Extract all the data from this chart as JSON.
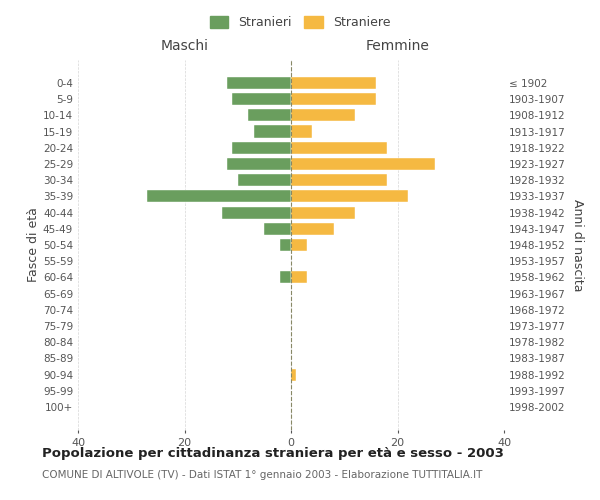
{
  "age_groups": [
    "0-4",
    "5-9",
    "10-14",
    "15-19",
    "20-24",
    "25-29",
    "30-34",
    "35-39",
    "40-44",
    "45-49",
    "50-54",
    "55-59",
    "60-64",
    "65-69",
    "70-74",
    "75-79",
    "80-84",
    "85-89",
    "90-94",
    "95-99",
    "100+"
  ],
  "birth_years": [
    "1998-2002",
    "1993-1997",
    "1988-1992",
    "1983-1987",
    "1978-1982",
    "1973-1977",
    "1968-1972",
    "1963-1967",
    "1958-1962",
    "1953-1957",
    "1948-1952",
    "1943-1947",
    "1938-1942",
    "1933-1937",
    "1928-1932",
    "1923-1927",
    "1918-1922",
    "1913-1917",
    "1908-1912",
    "1903-1907",
    "≤ 1902"
  ],
  "maschi": [
    12,
    11,
    8,
    7,
    11,
    12,
    10,
    27,
    13,
    5,
    2,
    0,
    2,
    0,
    0,
    0,
    0,
    0,
    0,
    0,
    0
  ],
  "femmine": [
    16,
    16,
    12,
    4,
    18,
    27,
    18,
    22,
    12,
    8,
    3,
    0,
    3,
    0,
    0,
    0,
    0,
    0,
    1,
    0,
    0
  ],
  "color_maschi": "#6a9e5e",
  "color_femmine": "#f5b942",
  "xlim": 40,
  "title": "Popolazione per cittadinanza straniera per età e sesso - 2003",
  "subtitle": "COMUNE DI ALTIVOLE (TV) - Dati ISTAT 1° gennaio 2003 - Elaborazione TUTTITALIA.IT",
  "ylabel_left": "Fasce di età",
  "ylabel_right": "Anni di nascita",
  "label_maschi": "Stranieri",
  "label_femmine": "Straniere",
  "header_maschi": "Maschi",
  "header_femmine": "Femmine",
  "bg_color": "#ffffff",
  "grid_color": "#cccccc",
  "text_color": "#555555",
  "axis_label_color": "#444444"
}
